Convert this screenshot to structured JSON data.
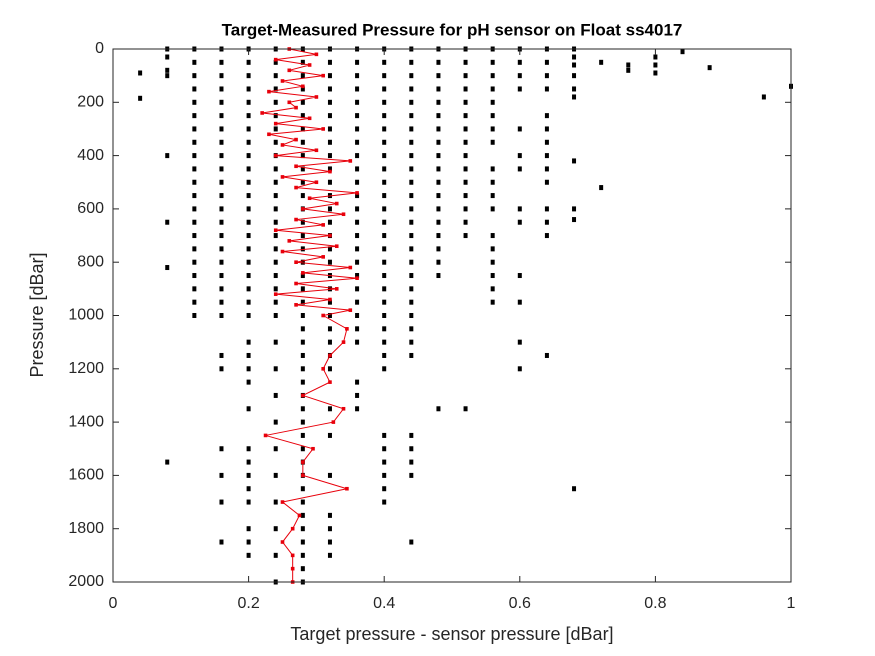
{
  "chart_data": {
    "type": "scatter",
    "title": "Target-Measured Pressure for pH sensor on Float ss4017",
    "x_label": "Target pressure - sensor pressure [dBar]",
    "y_label": "Pressure [dBar]",
    "xlim": [
      0,
      1
    ],
    "ylim": [
      0,
      2000
    ],
    "y_reversed": true,
    "xticks": [
      0,
      0.2,
      0.4,
      0.6,
      0.8,
      1
    ],
    "yticks": [
      0,
      200,
      400,
      600,
      800,
      1000,
      1200,
      1400,
      1600,
      1800,
      2000
    ],
    "series": [
      {
        "color": "#000000",
        "mode": "markers",
        "x": [
          0.04,
          0.04,
          0.08,
          0.08,
          0.08,
          0.08,
          0.08,
          0.08,
          0.08,
          0.08
        ],
        "values": [
          90,
          185,
          0,
          30,
          80,
          100,
          400,
          650,
          820,
          1550
        ]
      },
      {
        "color": "#000000",
        "mode": "markers",
        "x": [
          0.12,
          0.12,
          0.12,
          0.12,
          0.12,
          0.12,
          0.12,
          0.12,
          0.12,
          0.12,
          0.12,
          0.12,
          0.12,
          0.12,
          0.12,
          0.12,
          0.12,
          0.12,
          0.12,
          0.12,
          0.12
        ],
        "values": [
          0,
          50,
          100,
          150,
          200,
          250,
          300,
          350,
          400,
          450,
          500,
          550,
          600,
          650,
          700,
          750,
          800,
          850,
          900,
          950,
          1000
        ]
      },
      {
        "color": "#000000",
        "mode": "markers",
        "x": [
          0.16,
          0.16,
          0.16,
          0.16,
          0.16,
          0.16,
          0.16,
          0.16,
          0.16,
          0.16,
          0.16,
          0.16,
          0.16,
          0.16,
          0.16,
          0.16,
          0.16,
          0.16,
          0.16,
          0.16,
          0.16,
          0.16,
          0.16,
          0.16,
          0.16,
          0.16,
          0.16
        ],
        "values": [
          0,
          50,
          100,
          150,
          200,
          250,
          300,
          350,
          400,
          450,
          500,
          550,
          600,
          650,
          700,
          750,
          800,
          850,
          900,
          950,
          1000,
          1150,
          1200,
          1500,
          1600,
          1700,
          1850
        ]
      },
      {
        "color": "#000000",
        "mode": "markers",
        "x": [
          0.2,
          0.2,
          0.2,
          0.2,
          0.2,
          0.2,
          0.2,
          0.2,
          0.2,
          0.2,
          0.2,
          0.2,
          0.2,
          0.2,
          0.2,
          0.2,
          0.2,
          0.2,
          0.2,
          0.2,
          0.2,
          0.2,
          0.2,
          0.2,
          0.2,
          0.2,
          0.2,
          0.2,
          0.2,
          0.2,
          0.2,
          0.2,
          0.2,
          0.2
        ],
        "values": [
          0,
          50,
          100,
          150,
          200,
          250,
          300,
          350,
          400,
          450,
          500,
          550,
          600,
          650,
          700,
          750,
          800,
          850,
          900,
          950,
          1000,
          1100,
          1150,
          1200,
          1250,
          1350,
          1500,
          1550,
          1600,
          1650,
          1700,
          1800,
          1850,
          1900
        ]
      },
      {
        "color": "#000000",
        "mode": "markers",
        "x": [
          0.24,
          0.24,
          0.24,
          0.24,
          0.24,
          0.24,
          0.24,
          0.24,
          0.24,
          0.24,
          0.24,
          0.24,
          0.24,
          0.24,
          0.24,
          0.24,
          0.24,
          0.24,
          0.24,
          0.24,
          0.24,
          0.24,
          0.24,
          0.24,
          0.24,
          0.24,
          0.24,
          0.24,
          0.24,
          0.24,
          0.24
        ],
        "values": [
          0,
          50,
          100,
          150,
          200,
          250,
          300,
          350,
          400,
          450,
          500,
          550,
          600,
          650,
          700,
          750,
          800,
          850,
          900,
          950,
          1000,
          1100,
          1200,
          1300,
          1400,
          1500,
          1600,
          1700,
          1800,
          1900,
          2000
        ]
      },
      {
        "color": "#000000",
        "mode": "markers",
        "x": [
          0.28,
          0.28,
          0.28,
          0.28,
          0.28,
          0.28,
          0.28,
          0.28,
          0.28,
          0.28,
          0.28,
          0.28,
          0.28,
          0.28,
          0.28,
          0.28,
          0.28,
          0.28,
          0.28,
          0.28,
          0.28,
          0.28,
          0.28,
          0.28,
          0.28,
          0.28,
          0.28,
          0.28,
          0.28,
          0.28,
          0.28,
          0.28,
          0.28,
          0.28,
          0.28,
          0.28,
          0.28,
          0.28,
          0.28,
          0.28,
          0.28
        ],
        "values": [
          0,
          50,
          100,
          150,
          200,
          250,
          300,
          350,
          400,
          450,
          500,
          550,
          600,
          650,
          700,
          750,
          800,
          850,
          900,
          950,
          1000,
          1050,
          1100,
          1150,
          1200,
          1250,
          1300,
          1350,
          1400,
          1450,
          1500,
          1550,
          1600,
          1650,
          1700,
          1750,
          1800,
          1850,
          1900,
          1950,
          2000
        ]
      },
      {
        "color": "#000000",
        "mode": "markers",
        "x": [
          0.32,
          0.32,
          0.32,
          0.32,
          0.32,
          0.32,
          0.32,
          0.32,
          0.32,
          0.32,
          0.32,
          0.32,
          0.32,
          0.32,
          0.32,
          0.32,
          0.32,
          0.32,
          0.32,
          0.32,
          0.32,
          0.32,
          0.32,
          0.32,
          0.32,
          0.32,
          0.32,
          0.32,
          0.32,
          0.32,
          0.32,
          0.32
        ],
        "values": [
          0,
          50,
          100,
          150,
          200,
          250,
          300,
          350,
          400,
          450,
          500,
          550,
          600,
          650,
          700,
          750,
          800,
          850,
          900,
          950,
          1000,
          1050,
          1100,
          1150,
          1200,
          1350,
          1450,
          1600,
          1750,
          1800,
          1850,
          1900
        ]
      },
      {
        "color": "#000000",
        "mode": "markers",
        "x": [
          0.36,
          0.36,
          0.36,
          0.36,
          0.36,
          0.36,
          0.36,
          0.36,
          0.36,
          0.36,
          0.36,
          0.36,
          0.36,
          0.36,
          0.36,
          0.36,
          0.36,
          0.36,
          0.36,
          0.36,
          0.36,
          0.36,
          0.36,
          0.36,
          0.36,
          0.36
        ],
        "values": [
          0,
          50,
          100,
          150,
          200,
          250,
          300,
          350,
          400,
          450,
          500,
          550,
          600,
          650,
          700,
          750,
          800,
          850,
          900,
          950,
          1000,
          1050,
          1100,
          1250,
          1300,
          1350
        ]
      },
      {
        "color": "#000000",
        "mode": "markers",
        "x": [
          0.4,
          0.4,
          0.4,
          0.4,
          0.4,
          0.4,
          0.4,
          0.4,
          0.4,
          0.4,
          0.4,
          0.4,
          0.4,
          0.4,
          0.4,
          0.4,
          0.4,
          0.4,
          0.4,
          0.4,
          0.4,
          0.4,
          0.4,
          0.4,
          0.4,
          0.4,
          0.4,
          0.4,
          0.4,
          0.4,
          0.4
        ],
        "values": [
          0,
          50,
          100,
          150,
          200,
          250,
          300,
          350,
          400,
          450,
          500,
          550,
          600,
          650,
          700,
          750,
          800,
          850,
          900,
          950,
          1000,
          1050,
          1100,
          1150,
          1200,
          1450,
          1500,
          1550,
          1600,
          1650,
          1700
        ]
      },
      {
        "color": "#000000",
        "mode": "markers",
        "x": [
          0.44,
          0.44,
          0.44,
          0.44,
          0.44,
          0.44,
          0.44,
          0.44,
          0.44,
          0.44,
          0.44,
          0.44,
          0.44,
          0.44,
          0.44,
          0.44,
          0.44,
          0.44,
          0.44,
          0.44,
          0.44,
          0.44,
          0.44,
          0.44,
          0.44,
          0.44,
          0.44,
          0.44,
          0.44
        ],
        "values": [
          0,
          50,
          100,
          150,
          200,
          250,
          300,
          350,
          400,
          450,
          500,
          550,
          600,
          650,
          700,
          750,
          800,
          850,
          900,
          950,
          1000,
          1050,
          1100,
          1150,
          1450,
          1500,
          1550,
          1600,
          1850
        ]
      },
      {
        "color": "#000000",
        "mode": "markers",
        "x": [
          0.48,
          0.48,
          0.48,
          0.48,
          0.48,
          0.48,
          0.48,
          0.48,
          0.48,
          0.48,
          0.48,
          0.48,
          0.48,
          0.48,
          0.48,
          0.48,
          0.48,
          0.48,
          0.48,
          0.52,
          0.52,
          0.52,
          0.52,
          0.52,
          0.52,
          0.52,
          0.52,
          0.52,
          0.52,
          0.52,
          0.52,
          0.52,
          0.52,
          0.52,
          0.52
        ],
        "values": [
          0,
          50,
          100,
          150,
          200,
          250,
          300,
          350,
          400,
          450,
          500,
          550,
          600,
          650,
          700,
          750,
          800,
          850,
          1350,
          0,
          50,
          100,
          150,
          200,
          250,
          300,
          350,
          400,
          450,
          500,
          550,
          600,
          650,
          700,
          1350
        ]
      },
      {
        "color": "#000000",
        "mode": "markers",
        "x": [
          0.56,
          0.56,
          0.56,
          0.56,
          0.56,
          0.56,
          0.56,
          0.56,
          0.56,
          0.56,
          0.56,
          0.56,
          0.56,
          0.56,
          0.56,
          0.56,
          0.56,
          0.56,
          0.6,
          0.6,
          0.6,
          0.6,
          0.6,
          0.6,
          0.6,
          0.6,
          0.6,
          0.6,
          0.6,
          0.6,
          0.6
        ],
        "values": [
          0,
          50,
          100,
          150,
          200,
          250,
          300,
          350,
          450,
          500,
          550,
          600,
          700,
          750,
          800,
          850,
          900,
          950,
          0,
          50,
          100,
          150,
          300,
          400,
          450,
          600,
          650,
          850,
          950,
          1100,
          1200
        ]
      },
      {
        "color": "#000000",
        "mode": "markers",
        "x": [
          0.64,
          0.64,
          0.64,
          0.64,
          0.64,
          0.64,
          0.64,
          0.64,
          0.64,
          0.64,
          0.64,
          0.64,
          0.64,
          0.64,
          0.68,
          0.68,
          0.68,
          0.68,
          0.68,
          0.68,
          0.68,
          0.68,
          0.68,
          0.68,
          0.72,
          0.72,
          0.76,
          0.76,
          0.8,
          0.8,
          0.8,
          0.84,
          0.88,
          0.96,
          1
        ],
        "values": [
          0,
          50,
          100,
          150,
          250,
          300,
          350,
          400,
          450,
          500,
          600,
          650,
          700,
          1150,
          0,
          30,
          60,
          100,
          150,
          180,
          420,
          600,
          640,
          1650,
          50,
          520,
          60,
          80,
          30,
          60,
          90,
          10,
          70,
          180,
          140
        ]
      },
      {
        "color": "#e8000b",
        "mode": "lines+markers",
        "x": [
          0.26,
          0.3,
          0.24,
          0.29,
          0.26,
          0.31,
          0.25,
          0.28,
          0.23,
          0.3,
          0.26,
          0.27,
          0.22,
          0.29,
          0.24,
          0.31,
          0.23,
          0.27,
          0.25,
          0.3,
          0.24,
          0.35,
          0.27,
          0.32,
          0.25,
          0.3,
          0.27,
          0.36,
          0.29,
          0.33,
          0.28,
          0.34,
          0.27,
          0.31,
          0.24,
          0.32,
          0.26,
          0.33,
          0.25,
          0.31,
          0.27,
          0.35,
          0.28,
          0.36,
          0.27,
          0.33,
          0.24,
          0.32,
          0.27,
          0.35,
          0.31,
          0.345,
          0.34,
          0.32,
          0.31,
          0.32,
          0.28,
          0.34,
          0.325,
          0.225,
          0.295,
          0.28,
          0.28,
          0.345,
          0.25,
          0.275,
          0.265,
          0.25,
          0.265,
          0.265,
          0.265
        ],
        "values": [
          0,
          20,
          40,
          60,
          80,
          100,
          120,
          140,
          160,
          180,
          200,
          220,
          240,
          260,
          280,
          300,
          320,
          340,
          360,
          380,
          400,
          420,
          440,
          460,
          480,
          500,
          520,
          540,
          560,
          580,
          600,
          620,
          640,
          660,
          680,
          700,
          720,
          740,
          760,
          780,
          800,
          820,
          840,
          860,
          880,
          900,
          920,
          940,
          960,
          980,
          1000,
          1050,
          1100,
          1150,
          1200,
          1250,
          1300,
          1350,
          1400,
          1450,
          1500,
          1550,
          1600,
          1650,
          1700,
          1750,
          1800,
          1850,
          1900,
          1950,
          2000
        ]
      }
    ]
  }
}
